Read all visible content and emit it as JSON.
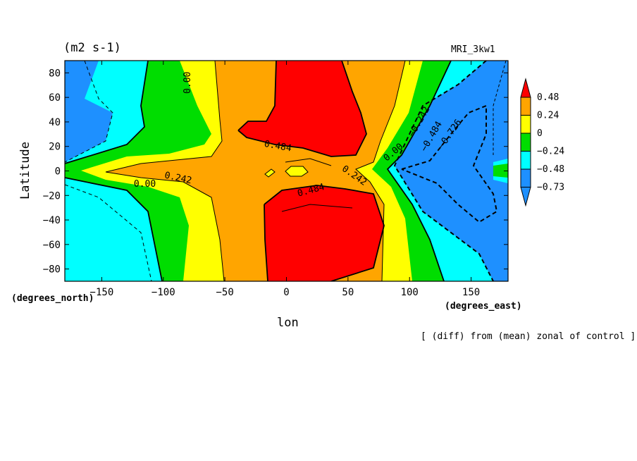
{
  "header": {
    "units": "(m2 s-1)",
    "model": "MRI_3kw1"
  },
  "footer_note": "[ (diff) from (mean) zonal of control ]",
  "colors": {
    "red": "#ff0000",
    "orange": "#ffa500",
    "yellow": "#ffff00",
    "green": "#00dd00",
    "cyan": "#00ffff",
    "blue": "#1e90ff"
  },
  "chart_data": {
    "type": "contour",
    "xlabel": "lon",
    "ylabel": "Latitude",
    "x_units": "(degrees_east)",
    "y_units": "(degrees_north)",
    "xlim": [
      -180,
      180
    ],
    "ylim": [
      -90,
      90
    ],
    "x_ticks": [
      -150,
      -100,
      -50,
      0,
      50,
      100,
      150
    ],
    "x_tick_labels": [
      "−150",
      "−100",
      "−50",
      "0",
      "50",
      "100",
      "150"
    ],
    "y_ticks": [
      80,
      60,
      40,
      20,
      0,
      -20,
      -40,
      -60,
      -80
    ],
    "y_tick_labels": [
      "80",
      "60",
      "40",
      "20",
      "0",
      "−20",
      "−40",
      "−60",
      "−80"
    ],
    "colorbar": {
      "labels": [
        "0.48",
        "0.24",
        "0",
        "−0.24",
        "−0.48",
        "−0.73"
      ],
      "levels": [
        0.48,
        0.24,
        0,
        -0.24,
        -0.48,
        -0.73
      ],
      "colors_top_to_bottom": [
        "#ff0000",
        "#ffa500",
        "#ffff00",
        "#00dd00",
        "#00ffff",
        "#1e90ff",
        "#1e90ff"
      ]
    },
    "contour_labels": [
      {
        "text": "0.00",
        "lon": -80,
        "lat": 72,
        "angle": -90
      },
      {
        "text": "0.484",
        "lon": -7,
        "lat": 20,
        "angle": 10
      },
      {
        "text": "0.242",
        "lon": -88,
        "lat": -6,
        "angle": 12
      },
      {
        "text": "0.00",
        "lon": -115,
        "lat": -11,
        "angle": 0
      },
      {
        "text": "0.484",
        "lon": 20,
        "lat": -16,
        "angle": -15
      },
      {
        "text": "0.242",
        "lon": 55,
        "lat": -4,
        "angle": 35
      },
      {
        "text": "0.00",
        "lon": 87,
        "lat": 15,
        "angle": -40
      },
      {
        "text": "−0.242",
        "lon": 108,
        "lat": 40,
        "angle": -60
      },
      {
        "text": "−0.484",
        "lon": 118,
        "lat": 28,
        "angle": -60
      },
      {
        "text": "−0.726",
        "lon": 133,
        "lat": 30,
        "angle": -55
      }
    ]
  }
}
